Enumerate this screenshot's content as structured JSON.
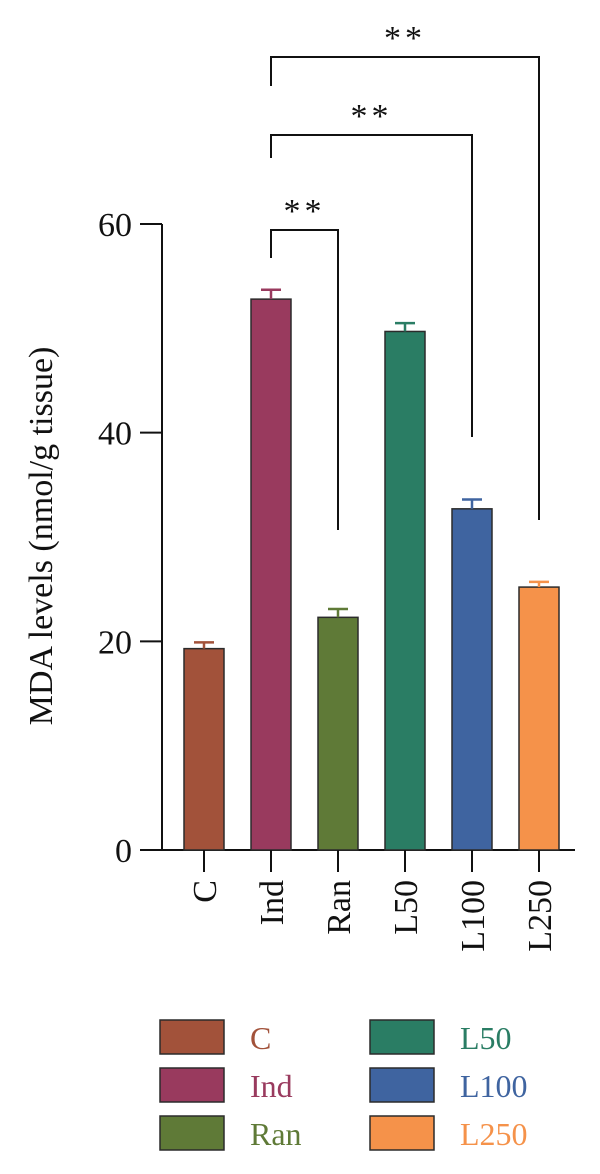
{
  "chart_data": {
    "type": "bar",
    "ylabel": "MDA levels (nmol/g tissue)",
    "ylim": [
      0,
      60
    ],
    "yticks": [
      0,
      20,
      40,
      60
    ],
    "yticks_labels": [
      "0",
      "20",
      "40",
      "60"
    ],
    "categories": [
      "C",
      "Ind",
      "Ran",
      "L50",
      "L100",
      "L250"
    ],
    "values": [
      19.3,
      52.8,
      22.3,
      49.7,
      32.7,
      25.2
    ],
    "errors": [
      0.6,
      0.9,
      0.8,
      0.8,
      0.9,
      0.5
    ],
    "colors": [
      "#a2523a",
      "#993a5e",
      "#5f7a37",
      "#2a7d64",
      "#3f64a0",
      "#f5924a"
    ],
    "significance": [
      {
        "from": "Ind",
        "to": "Ran",
        "label": "**"
      },
      {
        "from": "Ind",
        "to": "L100",
        "label": "**"
      },
      {
        "from": "Ind",
        "to": "L250",
        "label": "**"
      }
    ],
    "legend": {
      "position": "bottom",
      "entries": [
        "C",
        "Ind",
        "Ran",
        "L50",
        "L100",
        "L250"
      ]
    }
  }
}
